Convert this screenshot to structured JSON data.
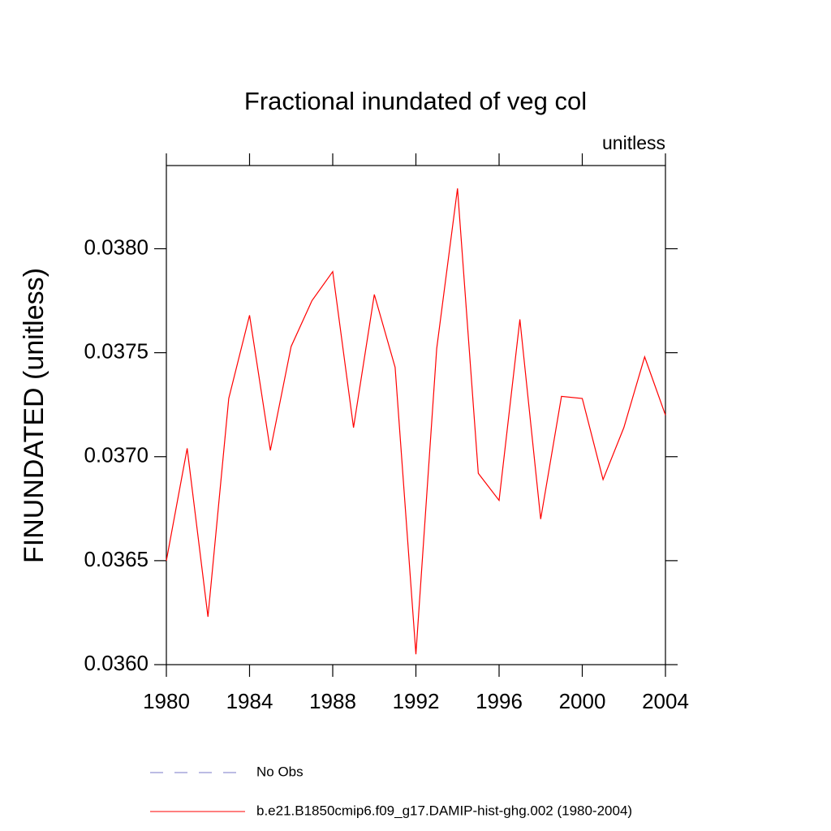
{
  "chart_data": {
    "type": "line",
    "title": "Fractional inundated of veg col",
    "subtitle": "unitless",
    "y_label": "FINUNDATED  (unitless)",
    "x": [
      1980,
      1981,
      1982,
      1983,
      1984,
      1985,
      1986,
      1987,
      1988,
      1989,
      1990,
      1991,
      1992,
      1993,
      1994,
      1995,
      1996,
      1997,
      1998,
      1999,
      2000,
      2001,
      2002,
      2003,
      2004
    ],
    "series": [
      {
        "name": "No Obs",
        "color": "#7a7ac8",
        "dash": true,
        "values": [
          null,
          null,
          null,
          null,
          null,
          null,
          null,
          null,
          null,
          null,
          null,
          null,
          null,
          null,
          null,
          null,
          null,
          null,
          null,
          null,
          null,
          null,
          null,
          null,
          null
        ]
      },
      {
        "name": "b.e21.B1850cmip6.f09_g17.DAMIP-hist-ghg.002 (1980-2004)",
        "color": "#ff0000",
        "dash": false,
        "values": [
          0.0365,
          0.03704,
          0.03623,
          0.03728,
          0.03768,
          0.03703,
          0.03753,
          0.03775,
          0.03789,
          0.03714,
          0.03778,
          0.03743,
          0.03605,
          0.03752,
          0.03829,
          0.03692,
          0.03679,
          0.03766,
          0.0367,
          0.03729,
          0.03728,
          0.03689,
          0.03714,
          0.03748,
          0.0372
        ]
      }
    ],
    "xlim": [
      1980,
      2004
    ],
    "xticks": [
      1980,
      1984,
      1988,
      1992,
      1996,
      2000,
      2004
    ],
    "ylim": [
      0.036,
      0.0384
    ],
    "yticks": [
      {
        "value": 0.036,
        "label": "0.0360"
      },
      {
        "value": 0.0365,
        "label": "0.0365"
      },
      {
        "value": 0.037,
        "label": "0.0370"
      },
      {
        "value": 0.0375,
        "label": "0.0375"
      },
      {
        "value": 0.038,
        "label": "0.0380"
      }
    ]
  }
}
